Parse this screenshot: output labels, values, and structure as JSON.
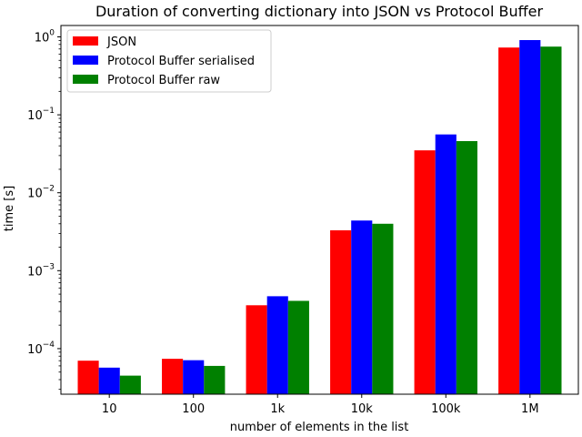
{
  "chart_data": {
    "type": "bar",
    "title": "Duration of converting dictionary into JSON vs Protocol Buffer",
    "xlabel": "number of elements in the list",
    "ylabel": "time [s]",
    "yscale": "log",
    "ylim": [
      2.6e-05,
      1.4
    ],
    "yticks": [
      {
        "value": 0.0001,
        "base": "10",
        "exp": "−4"
      },
      {
        "value": 0.001,
        "base": "10",
        "exp": "−3"
      },
      {
        "value": 0.01,
        "base": "10",
        "exp": "−2"
      },
      {
        "value": 0.1,
        "base": "10",
        "exp": "−1"
      },
      {
        "value": 1,
        "base": "10",
        "exp": "0"
      }
    ],
    "categories": [
      "10",
      "100",
      "1k",
      "10k",
      "100k",
      "1M"
    ],
    "series": [
      {
        "name": "JSON",
        "color": "#ff0000",
        "values": [
          7e-05,
          7.4e-05,
          0.00036,
          0.0033,
          0.035,
          0.73
        ]
      },
      {
        "name": "Protocol Buffer serialised",
        "color": "#0000ff",
        "values": [
          5.7e-05,
          7.1e-05,
          0.00047,
          0.0044,
          0.056,
          0.91
        ]
      },
      {
        "name": "Protocol Buffer raw",
        "color": "#008000",
        "values": [
          4.5e-05,
          6e-05,
          0.00041,
          0.004,
          0.046,
          0.75
        ]
      }
    ],
    "legend_position": "top-left",
    "grid": false
  }
}
